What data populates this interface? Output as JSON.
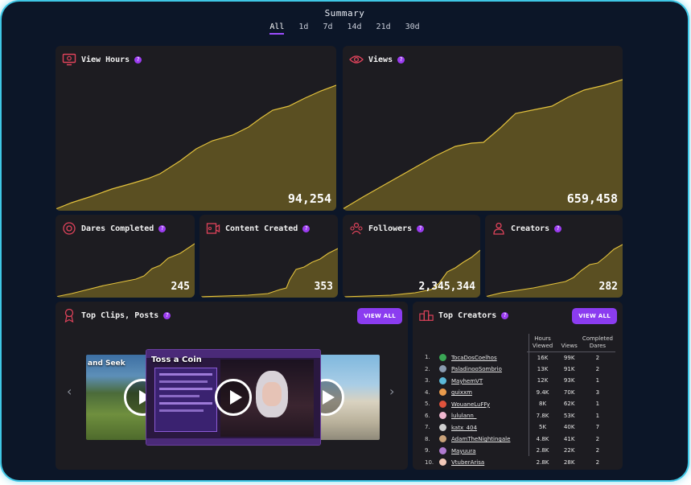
{
  "header": {
    "title": "Summary",
    "tabs": [
      "All",
      "1d",
      "7d",
      "14d",
      "21d",
      "30d"
    ],
    "active_tab": "All"
  },
  "colors": {
    "accent": "#9b3cf0",
    "spark_line": "#e3c23d",
    "spark_fill": "#5a4f22",
    "card_bg": "#1d1c21",
    "page_bg": "#0c1628",
    "glow": "#3fc7e6",
    "icon": "#e0435b"
  },
  "stats": {
    "view_hours": {
      "label": "View Hours",
      "value": "94,254",
      "icon": "monitor-icon"
    },
    "views": {
      "label": "Views",
      "value": "659,458",
      "icon": "eye-icon"
    },
    "dares_completed": {
      "label": "Dares Completed",
      "value": "245",
      "icon": "target-icon"
    },
    "content_created": {
      "label": "Content Created",
      "value": "353",
      "icon": "film-icon"
    },
    "followers": {
      "label": "Followers",
      "value": "2,345,344",
      "icon": "users-icon"
    },
    "creators": {
      "label": "Creators",
      "value": "282",
      "icon": "person-icon"
    }
  },
  "top_clips": {
    "title": "Top Clips, Posts",
    "view_all": "VIEW ALL",
    "clips": [
      {
        "title": "and Seek"
      },
      {
        "title": "Toss a Coin"
      },
      {
        "title": ""
      }
    ]
  },
  "top_creators": {
    "title": "Top Creators",
    "view_all": "VIEW ALL",
    "columns": [
      "Hours Viewed",
      "Views",
      "Completed Dares"
    ],
    "rows": [
      {
        "rank": "1.",
        "name": "TocaDosCoelhos",
        "hours": "16K",
        "views": "99K",
        "dares": "2",
        "avatar_color": "#3aa655"
      },
      {
        "rank": "2.",
        "name": "PaladinooSombrio",
        "hours": "13K",
        "views": "91K",
        "dares": "2",
        "avatar_color": "#8a9bb0"
      },
      {
        "rank": "3.",
        "name": "MayhemVT",
        "hours": "12K",
        "views": "93K",
        "dares": "1",
        "avatar_color": "#5bb8d8"
      },
      {
        "rank": "4.",
        "name": "guixxm",
        "hours": "9.4K",
        "views": "70K",
        "dares": "3",
        "avatar_color": "#e89a4c"
      },
      {
        "rank": "5.",
        "name": "WouaneLuFFy",
        "hours": "8K",
        "views": "62K",
        "dares": "1",
        "avatar_color": "#e0533c"
      },
      {
        "rank": "6.",
        "name": "lululann_",
        "hours": "7.8K",
        "views": "53K",
        "dares": "1",
        "avatar_color": "#f0b8d0"
      },
      {
        "rank": "7.",
        "name": "katx_404",
        "hours": "5K",
        "views": "40K",
        "dares": "7",
        "avatar_color": "#cfcfcf"
      },
      {
        "rank": "8.",
        "name": "AdamTheNightingale",
        "hours": "4.8K",
        "views": "41K",
        "dares": "2",
        "avatar_color": "#c9a27a"
      },
      {
        "rank": "9.",
        "name": "Mayuura",
        "hours": "2.8K",
        "views": "22K",
        "dares": "2",
        "avatar_color": "#b07ad0"
      },
      {
        "rank": "10.",
        "name": "VtuberArisa",
        "hours": "2.8K",
        "views": "28K",
        "dares": "2",
        "avatar_color": "#f4c9b8"
      }
    ]
  }
}
